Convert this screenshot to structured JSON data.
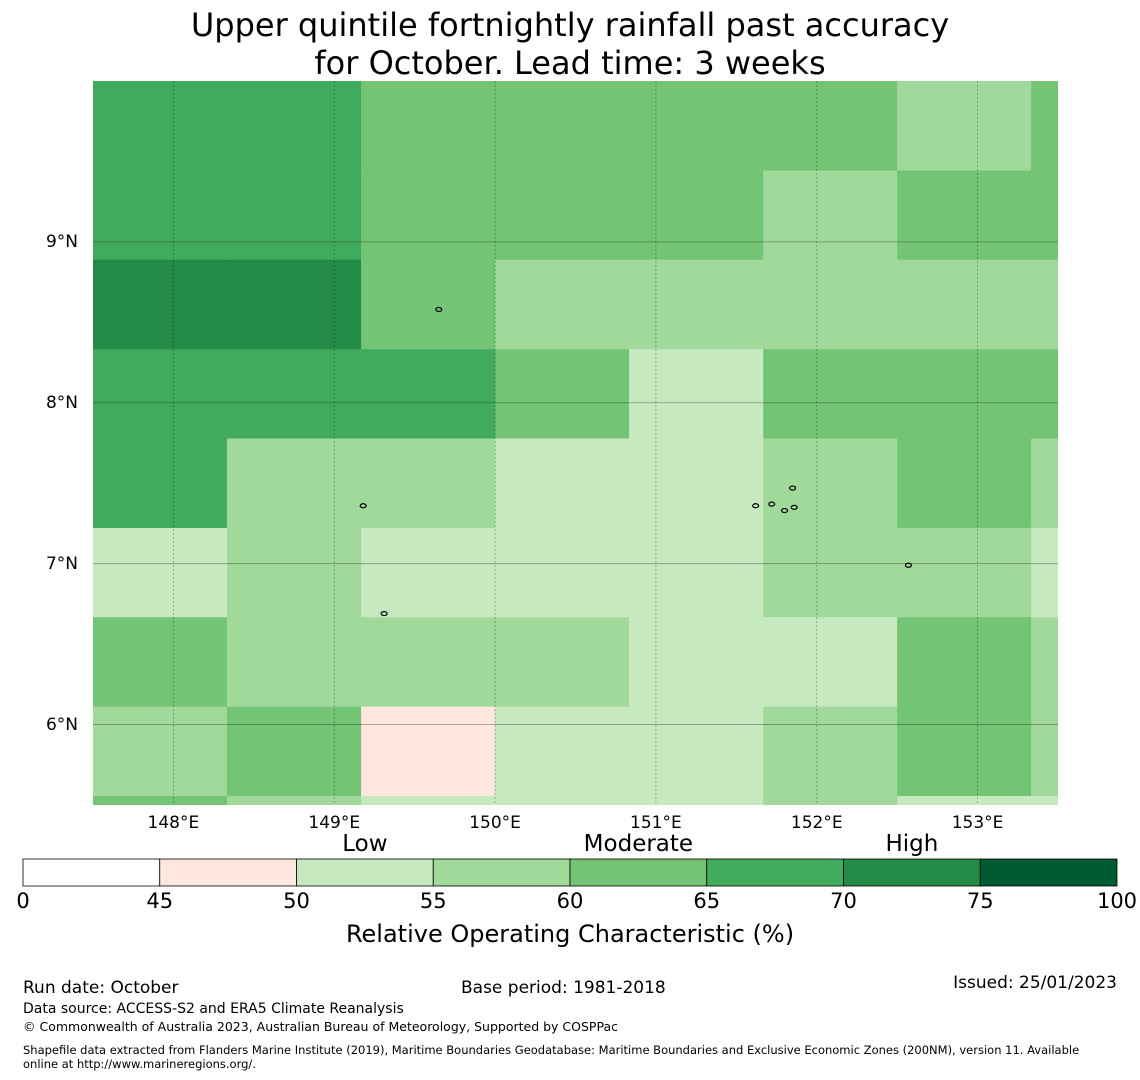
{
  "title": {
    "line1": "Upper quintile fortnightly rainfall past accuracy",
    "line2": "for October. Lead time: 3 weeks"
  },
  "map": {
    "lon_range": [
      147.5,
      153.5
    ],
    "lat_range": [
      5.5,
      10.0
    ],
    "lon_ticks": [
      {
        "value": 148,
        "label": "148°E"
      },
      {
        "value": 149,
        "label": "149°E"
      },
      {
        "value": 150,
        "label": "150°E"
      },
      {
        "value": 151,
        "label": "151°E"
      },
      {
        "value": 152,
        "label": "152°E"
      },
      {
        "value": 153,
        "label": "153°E"
      }
    ],
    "lat_ticks": [
      {
        "value": 9,
        "label": "9°N"
      },
      {
        "value": 8,
        "label": "8°N"
      },
      {
        "value": 7,
        "label": "7°N"
      },
      {
        "value": 6,
        "label": "6°N"
      }
    ],
    "grid_lon_edges": [
      147.5,
      148.333,
      149.167,
      150.0,
      150.833,
      151.667,
      152.5,
      153.333,
      153.5
    ],
    "grid_lat_edges": [
      10.0,
      9.444,
      8.889,
      8.333,
      7.778,
      7.222,
      6.667,
      6.111,
      5.556,
      5.5
    ],
    "roc_grid": [
      [
        67,
        67,
        62,
        62,
        62,
        62,
        57,
        62
      ],
      [
        67,
        67,
        62,
        62,
        62,
        57,
        62,
        62
      ],
      [
        72,
        72,
        62,
        57,
        57,
        57,
        57,
        57
      ],
      [
        67,
        67,
        67,
        62,
        52,
        62,
        62,
        62
      ],
      [
        67,
        57,
        57,
        52,
        52,
        57,
        62,
        57
      ],
      [
        52,
        57,
        52,
        52,
        52,
        57,
        57,
        52
      ],
      [
        62,
        57,
        57,
        57,
        52,
        52,
        62,
        57
      ],
      [
        57,
        62,
        47,
        52,
        52,
        57,
        62,
        57
      ],
      [
        62,
        57,
        52,
        52,
        52,
        57,
        52,
        52
      ]
    ],
    "islands": [
      {
        "lon": 149.65,
        "lat": 8.58
      },
      {
        "lon": 149.18,
        "lat": 7.36
      },
      {
        "lon": 149.31,
        "lat": 6.69
      },
      {
        "lon": 151.62,
        "lat": 7.36
      },
      {
        "lon": 151.72,
        "lat": 7.37
      },
      {
        "lon": 151.85,
        "lat": 7.47
      },
      {
        "lon": 151.86,
        "lat": 7.35
      },
      {
        "lon": 151.8,
        "lat": 7.33
      },
      {
        "lon": 152.57,
        "lat": 6.99
      }
    ]
  },
  "colorbar": {
    "bounds": [
      0,
      45,
      50,
      55,
      60,
      65,
      70,
      75,
      100
    ],
    "tick_labels": [
      "0",
      "45",
      "50",
      "55",
      "60",
      "65",
      "70",
      "75",
      "100"
    ],
    "colors": [
      "#ffffff",
      "#fee8de",
      "#c7e9c0",
      "#a1d99b",
      "#74c476",
      "#41ab5d",
      "#238b45",
      "#005a32"
    ],
    "categories": [
      {
        "label": "Low",
        "at": 52.5
      },
      {
        "label": "Moderate",
        "at": 62.5
      },
      {
        "label": "High",
        "at": 72.5
      }
    ],
    "title": "Relative Operating Characteristic (%)"
  },
  "footer": {
    "run_date": "Run date: October",
    "base_period": "Base period: 1981-2018",
    "issued": "Issued: 25/01/2023",
    "data_source": "Data source: ACCESS-S2 and ERA5 Climate Reanalysis",
    "copyright": "© Commonwealth of Australia 2023, Australian Bureau of Meteorology, Supported by COSPPac",
    "shapefile_line1": "Shapefile data extracted from Flanders Marine Institute (2019), Maritime Boundaries Geodatabase: Maritime Boundaries and Exclusive Economic Zones (200NM), version 11. Available",
    "shapefile_line2": "online at http://www.marineregions.org/."
  }
}
